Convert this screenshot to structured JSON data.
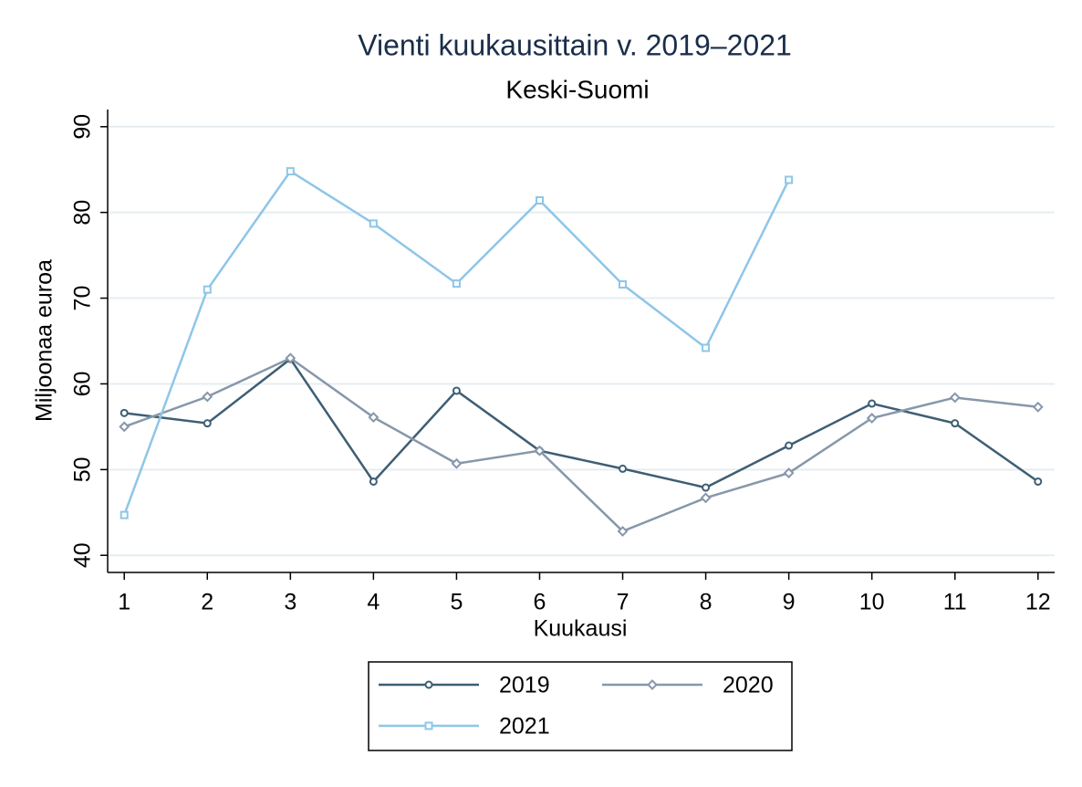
{
  "chart_data": {
    "type": "line",
    "title": "Vienti kuukausittain v. 2019–2021",
    "subtitle": "Keski-Suomi",
    "x_label": "Kuukausi",
    "y_label": "Miljoonaa euroa",
    "x": [
      1,
      2,
      3,
      4,
      5,
      6,
      7,
      8,
      9,
      10,
      11,
      12
    ],
    "series": [
      {
        "name": "2019",
        "color": "#3e5e74",
        "marker": "circle",
        "values": [
          56.6,
          55.4,
          62.9,
          48.6,
          59.2,
          52.2,
          50.1,
          47.9,
          52.8,
          57.7,
          55.4,
          48.6
        ]
      },
      {
        "name": "2020",
        "color": "#8797aa",
        "marker": "diamond",
        "values": [
          55.0,
          58.5,
          63.0,
          56.1,
          50.7,
          52.2,
          42.8,
          46.7,
          49.6,
          56.0,
          58.4,
          57.3
        ]
      },
      {
        "name": "2021",
        "color": "#8ec6e8",
        "marker": "square",
        "values": [
          44.7,
          71.0,
          84.8,
          78.7,
          71.7,
          81.4,
          71.6,
          64.2,
          83.8,
          null,
          null,
          null
        ]
      }
    ],
    "xlim": [
      0.8,
      12.2
    ],
    "xticks": [
      1,
      2,
      3,
      4,
      5,
      6,
      7,
      8,
      9,
      10,
      11,
      12
    ],
    "ylim": [
      38,
      92
    ],
    "yticks": [
      40,
      50,
      60,
      70,
      80,
      90
    ],
    "grid": true,
    "legend": "bottom"
  }
}
